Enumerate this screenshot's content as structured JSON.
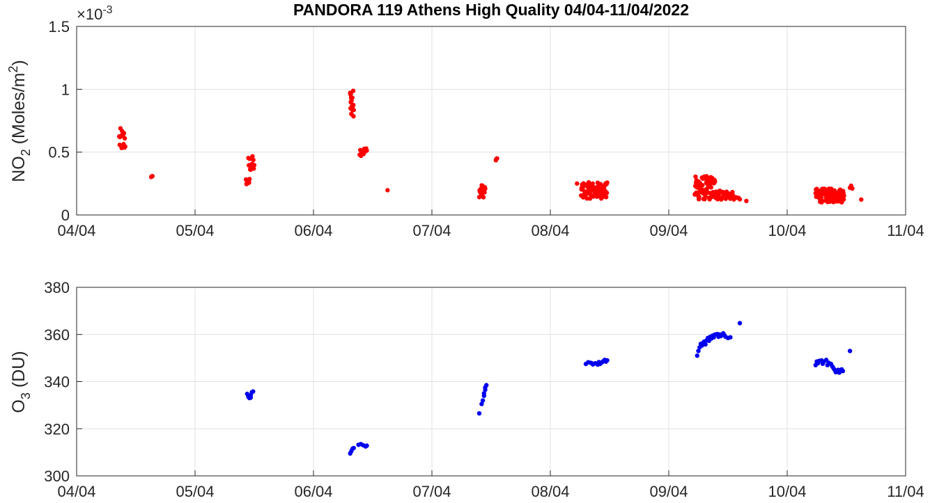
{
  "title": "PANDORA 119 Athens High Quality 04/04-11/04/2022",
  "chart_data": [
    {
      "type": "scatter",
      "ylabel_main": "NO",
      "ylabel_sub": "2",
      "ylabel_rest": " (Moles/m",
      "ylabel_sup": "2",
      "ylabel_end": ")",
      "exponent_prefix": "×10",
      "exponent_power": "-3",
      "xlim": [
        0,
        7
      ],
      "ylim": [
        0,
        1.5
      ],
      "x_tick_labels": [
        "04/04",
        "05/04",
        "06/04",
        "07/04",
        "08/04",
        "09/04",
        "10/04",
        "11/04"
      ],
      "y_ticks": [
        0,
        0.5,
        1,
        1.5
      ],
      "y_tick_labels": [
        "0",
        "0.5",
        "1",
        "1.5"
      ],
      "grid": true,
      "color": "#ff0000",
      "clusters": [
        {
          "x0": 0.36,
          "x1": 0.41,
          "y0": 0.5,
          "y1": 0.69,
          "n": 16
        },
        {
          "x0": 0.63,
          "x1": 0.64,
          "y0": 0.3,
          "y1": 0.31,
          "n": 3
        },
        {
          "x0": 1.43,
          "x1": 1.46,
          "y0": 0.24,
          "y1": 0.29,
          "n": 8
        },
        {
          "x0": 1.45,
          "x1": 1.5,
          "y0": 0.34,
          "y1": 0.47,
          "n": 14
        },
        {
          "x0": 2.31,
          "x1": 2.34,
          "y0": 0.78,
          "y1": 1.0,
          "n": 20
        },
        {
          "x0": 2.39,
          "x1": 2.45,
          "y0": 0.47,
          "y1": 0.54,
          "n": 12
        },
        {
          "x0": 2.62,
          "x1": 2.63,
          "y0": 0.19,
          "y1": 0.2,
          "n": 1
        },
        {
          "x0": 3.4,
          "x1": 3.45,
          "y0": 0.14,
          "y1": 0.24,
          "n": 18
        },
        {
          "x0": 3.54,
          "x1": 3.55,
          "y0": 0.43,
          "y1": 0.45,
          "n": 3
        },
        {
          "x0": 4.22,
          "x1": 4.23,
          "y0": 0.25,
          "y1": 0.25,
          "n": 1
        },
        {
          "x0": 4.26,
          "x1": 4.48,
          "y0": 0.13,
          "y1": 0.26,
          "n": 80
        },
        {
          "x0": 5.22,
          "x1": 5.4,
          "y0": 0.12,
          "y1": 0.31,
          "n": 90
        },
        {
          "x0": 5.4,
          "x1": 5.55,
          "y0": 0.12,
          "y1": 0.2,
          "n": 25
        },
        {
          "x0": 5.57,
          "x1": 5.6,
          "y0": 0.12,
          "y1": 0.14,
          "n": 4
        },
        {
          "x0": 5.65,
          "x1": 5.66,
          "y0": 0.11,
          "y1": 0.12,
          "n": 1
        },
        {
          "x0": 6.24,
          "x1": 6.48,
          "y0": 0.1,
          "y1": 0.21,
          "n": 90
        },
        {
          "x0": 6.53,
          "x1": 6.55,
          "y0": 0.21,
          "y1": 0.24,
          "n": 3
        },
        {
          "x0": 6.62,
          "x1": 6.63,
          "y0": 0.12,
          "y1": 0.13,
          "n": 1
        }
      ]
    },
    {
      "type": "scatter",
      "ylabel_main": "O",
      "ylabel_sub": "3",
      "ylabel_rest": " (DU)",
      "xlim": [
        0,
        7
      ],
      "ylim": [
        300,
        380
      ],
      "x_tick_labels": [
        "04/04",
        "05/04",
        "06/04",
        "07/04",
        "08/04",
        "09/04",
        "10/04",
        "11/04"
      ],
      "y_ticks": [
        300,
        320,
        340,
        360,
        380
      ],
      "y_tick_labels": [
        "300",
        "320",
        "340",
        "360",
        "380"
      ],
      "grid": true,
      "color": "#0000ee",
      "points": [
        [
          1.44,
          334.8
        ],
        [
          1.45,
          333.5
        ],
        [
          1.46,
          333.0
        ],
        [
          1.47,
          334.2
        ],
        [
          1.48,
          335.5
        ],
        [
          1.49,
          335.8
        ],
        [
          1.47,
          333.2
        ],
        [
          2.31,
          309.5
        ],
        [
          2.32,
          310.5
        ],
        [
          2.33,
          311.5
        ],
        [
          2.34,
          311.8
        ],
        [
          2.38,
          313.2
        ],
        [
          2.4,
          313.5
        ],
        [
          2.42,
          313.0
        ],
        [
          2.44,
          312.5
        ],
        [
          2.45,
          312.8
        ],
        [
          3.4,
          326.5
        ],
        [
          3.42,
          330.5
        ],
        [
          3.43,
          332.0
        ],
        [
          3.44,
          334.0
        ],
        [
          3.44,
          335.0
        ],
        [
          3.45,
          336.5
        ],
        [
          3.45,
          337.5
        ],
        [
          3.46,
          338.5
        ],
        [
          4.3,
          347.5
        ],
        [
          4.32,
          348.2
        ],
        [
          4.34,
          348.0
        ],
        [
          4.36,
          347.3
        ],
        [
          4.38,
          347.8
        ],
        [
          4.4,
          347.2
        ],
        [
          4.42,
          347.5
        ],
        [
          4.43,
          348.0
        ],
        [
          4.44,
          348.3
        ],
        [
          4.45,
          348.8
        ],
        [
          4.46,
          349.2
        ],
        [
          4.47,
          348.5
        ],
        [
          4.48,
          349.0
        ],
        [
          4.35,
          347.8
        ],
        [
          4.41,
          348.3
        ],
        [
          5.24,
          351.0
        ],
        [
          5.25,
          353.0
        ],
        [
          5.26,
          354.5
        ],
        [
          5.27,
          356.0
        ],
        [
          5.29,
          356.5
        ],
        [
          5.3,
          357.0
        ],
        [
          5.32,
          357.5
        ],
        [
          5.33,
          358.5
        ],
        [
          5.35,
          359.0
        ],
        [
          5.37,
          359.5
        ],
        [
          5.39,
          360.0
        ],
        [
          5.41,
          360.2
        ],
        [
          5.43,
          360.0
        ],
        [
          5.44,
          359.3
        ],
        [
          5.46,
          360.5
        ],
        [
          5.48,
          359.0
        ],
        [
          5.5,
          358.5
        ],
        [
          5.52,
          358.8
        ],
        [
          5.28,
          355.3
        ],
        [
          5.31,
          355.8
        ],
        [
          5.34,
          357.3
        ],
        [
          5.36,
          358.3
        ],
        [
          5.38,
          358.8
        ],
        [
          5.42,
          359.0
        ],
        [
          5.47,
          359.7
        ],
        [
          5.6,
          364.8
        ],
        [
          6.24,
          347.0
        ],
        [
          6.25,
          348.5
        ],
        [
          6.27,
          348.8
        ],
        [
          6.29,
          349.0
        ],
        [
          6.31,
          348.5
        ],
        [
          6.33,
          349.2
        ],
        [
          6.35,
          348.0
        ],
        [
          6.37,
          347.5
        ],
        [
          6.38,
          346.5
        ],
        [
          6.4,
          345.0
        ],
        [
          6.41,
          344.0
        ],
        [
          6.42,
          344.5
        ],
        [
          6.44,
          343.8
        ],
        [
          6.46,
          345.2
        ],
        [
          6.47,
          344.5
        ],
        [
          6.26,
          347.8
        ],
        [
          6.3,
          347.6
        ],
        [
          6.34,
          347.0
        ],
        [
          6.39,
          345.8
        ],
        [
          6.43,
          345.0
        ],
        [
          6.53,
          353.0
        ]
      ]
    }
  ]
}
